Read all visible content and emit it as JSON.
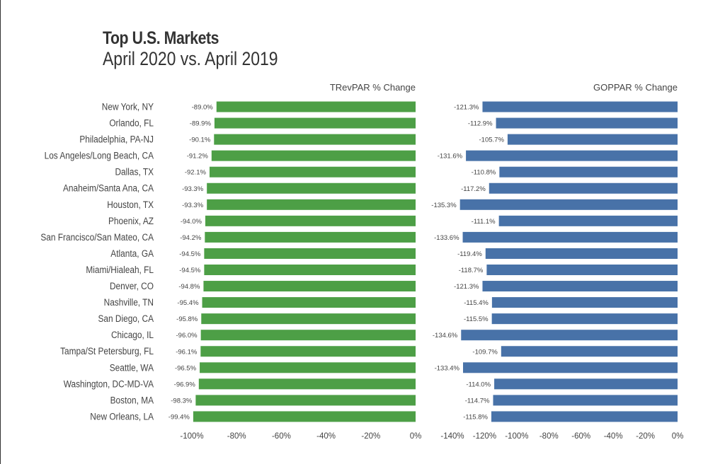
{
  "title": "Top U.S. Markets",
  "subtitle": "April 2020 vs. April 2019",
  "colors": {
    "trevpar": "#4d9f46",
    "goppar": "#4872a8"
  },
  "chart_data": [
    {
      "type": "bar",
      "orientation": "horizontal",
      "title": "TRevPAR % Change",
      "categories": [
        "New York, NY",
        "Orlando, FL",
        "Philadelphia, PA-NJ",
        "Los Angeles/Long Beach, CA",
        "Dallas, TX",
        "Anaheim/Santa Ana, CA",
        "Houston, TX",
        "Phoenix, AZ",
        "San Francisco/San Mateo, CA",
        "Atlanta, GA",
        "Miami/Hialeah, FL",
        "Denver, CO",
        "Nashville, TN",
        "San Diego, CA",
        "Chicago, IL",
        "Tampa/St Petersburg, FL",
        "Seattle, WA",
        "Washington, DC-MD-VA",
        "Boston, MA",
        "New Orleans, LA"
      ],
      "values": [
        -89.0,
        -89.9,
        -90.1,
        -91.2,
        -92.1,
        -93.3,
        -93.3,
        -94.0,
        -94.2,
        -94.5,
        -94.5,
        -94.8,
        -95.4,
        -95.8,
        -96.0,
        -96.1,
        -96.5,
        -96.9,
        -98.3,
        -99.4
      ],
      "xlim": [
        -100,
        0
      ],
      "ticks": [
        "-100%",
        "-80%",
        "-60%",
        "-40%",
        "-20%",
        "0%"
      ],
      "tick_values": [
        -100,
        -80,
        -60,
        -40,
        -20,
        0
      ]
    },
    {
      "type": "bar",
      "orientation": "horizontal",
      "title": "GOPPAR % Change",
      "categories": [
        "New York, NY",
        "Orlando, FL",
        "Philadelphia, PA-NJ",
        "Los Angeles/Long Beach, CA",
        "Dallas, TX",
        "Anaheim/Santa Ana, CA",
        "Houston, TX",
        "Phoenix, AZ",
        "San Francisco/San Mateo, CA",
        "Atlanta, GA",
        "Miami/Hialeah, FL",
        "Denver, CO",
        "Nashville, TN",
        "San Diego, CA",
        "Chicago, IL",
        "Tampa/St Petersburg, FL",
        "Seattle, WA",
        "Washington, DC-MD-VA",
        "Boston, MA",
        "New Orleans, LA"
      ],
      "values": [
        -121.3,
        -112.9,
        -105.7,
        -131.6,
        -110.8,
        -117.2,
        -135.3,
        -111.1,
        -133.6,
        -119.4,
        -118.7,
        -121.3,
        -115.4,
        -115.5,
        -134.6,
        -109.7,
        -133.4,
        -114.0,
        -114.7,
        -115.8
      ],
      "xlim": [
        -140,
        0
      ],
      "ticks": [
        "-140%",
        "-120%",
        "-100%",
        "-80%",
        "-60%",
        "-40%",
        "-20%",
        "0%"
      ],
      "tick_values": [
        -140,
        -120,
        -100,
        -80,
        -60,
        -40,
        -20,
        0
      ]
    }
  ]
}
